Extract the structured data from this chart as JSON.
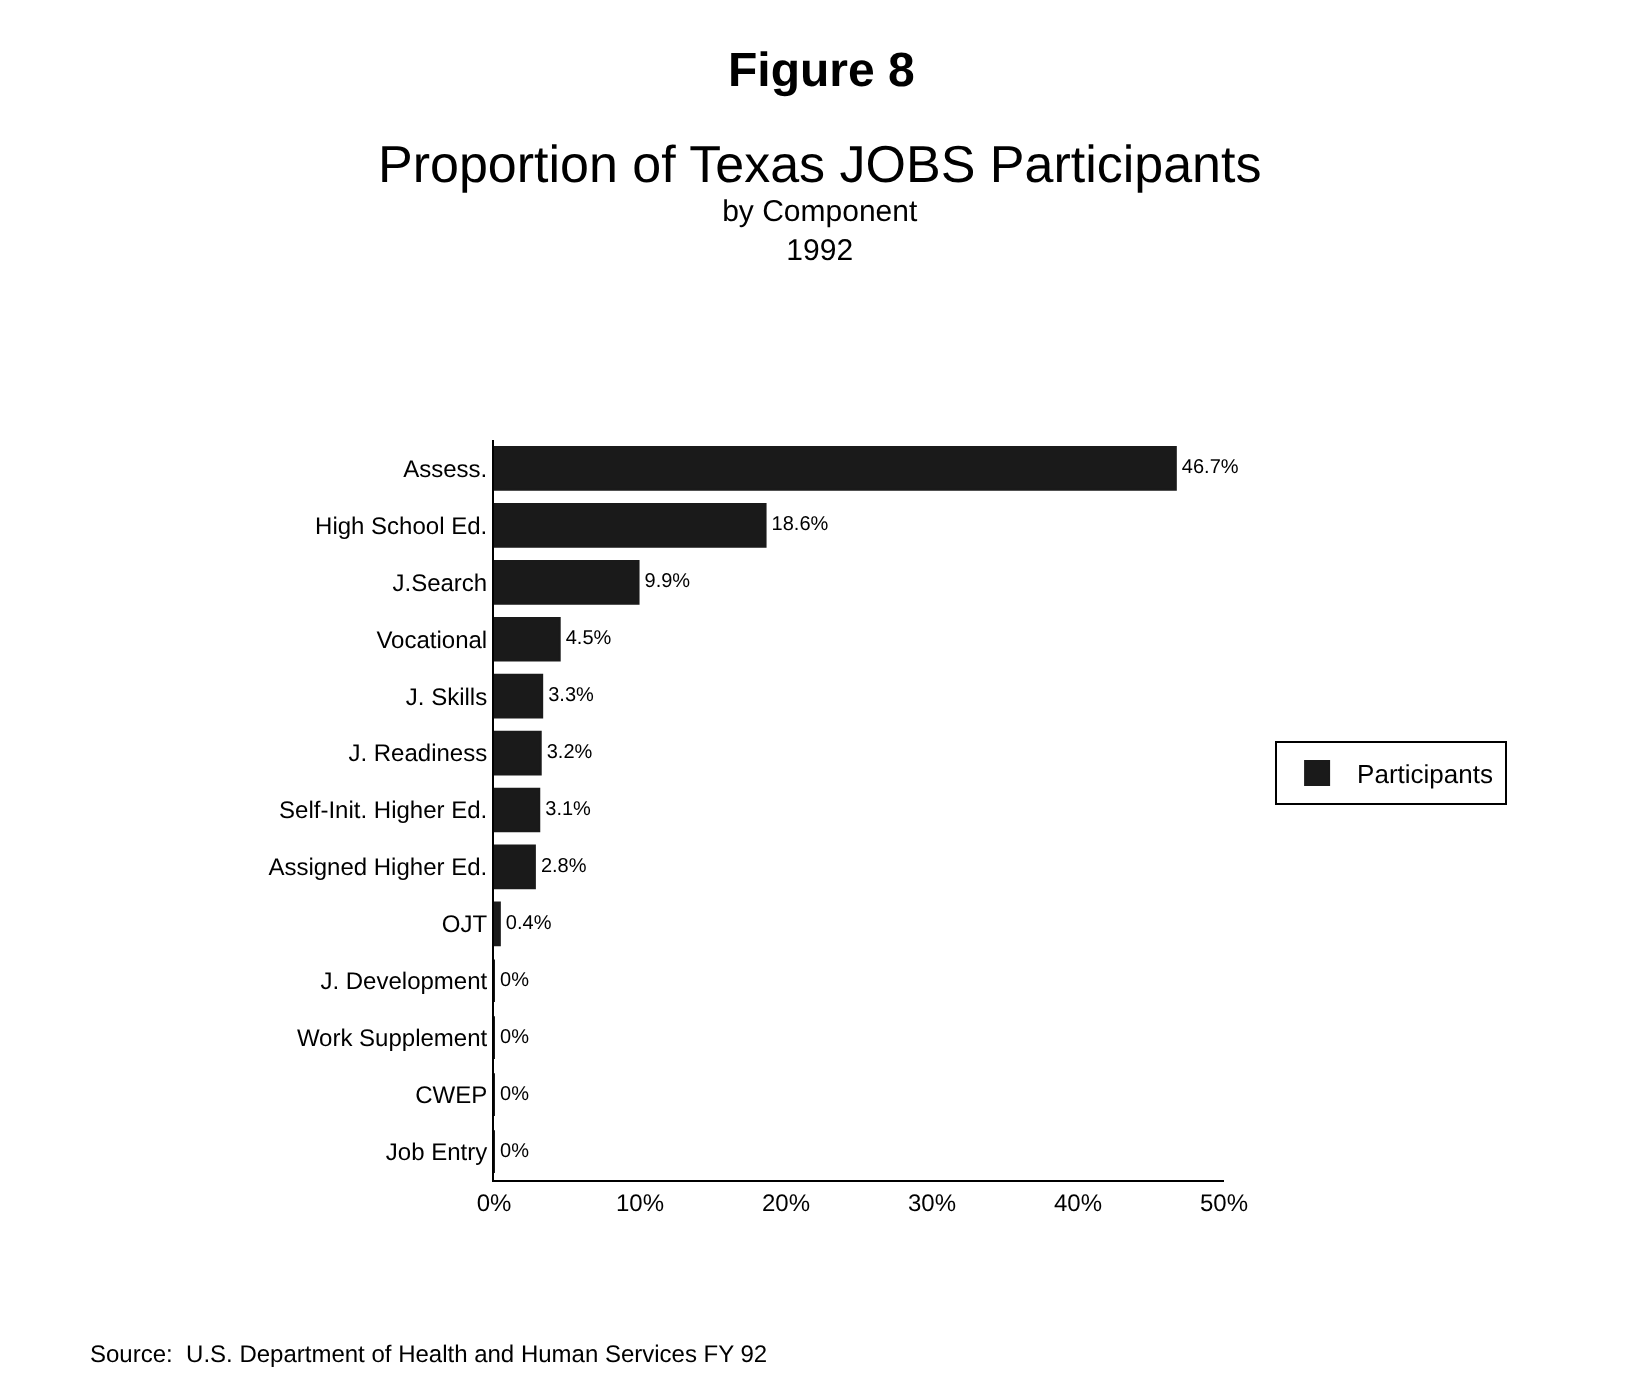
{
  "chart_data": {
    "type": "bar",
    "orientation": "horizontal",
    "title": "Figure 8",
    "subtitle": "Proportion of Texas JOBS Participants\nby Component\n1992",
    "categories": [
      "Assess.",
      "High School Ed.",
      "J.Search",
      "Vocational",
      "J. Skills",
      "J. Readiness",
      "Self-Init. Higher Ed.",
      "Assigned Higher Ed.",
      "OJT",
      "J. Development",
      "Work Supplement",
      "CWEP",
      "Job Entry"
    ],
    "series": [
      {
        "name": "Participants",
        "color": "#1a1a1a",
        "values": [
          46.7,
          18.6,
          9.9,
          4.5,
          3.3,
          3.2,
          3.1,
          2.8,
          0.4,
          0,
          0,
          0,
          0
        ],
        "value_labels": [
          "46.7%",
          "18.6%",
          "9.9%",
          "4.5%",
          "3.3%",
          "3.2%",
          "3.1%",
          "2.8%",
          "0.4%",
          "0%",
          "0%",
          "0%",
          "0%"
        ]
      }
    ],
    "xlim": [
      0,
      50
    ],
    "xticks": [
      {
        "value": 0,
        "label": "0%"
      },
      {
        "value": 10,
        "label": "10%"
      },
      {
        "value": 20,
        "label": "20%"
      },
      {
        "value": 30,
        "label": "30%"
      },
      {
        "value": 40,
        "label": "40%"
      },
      {
        "value": 50,
        "label": "50%"
      }
    ],
    "legend": "right",
    "annotations": [
      "Source:  U.S. Department of Health and Human Services FY 92"
    ]
  }
}
